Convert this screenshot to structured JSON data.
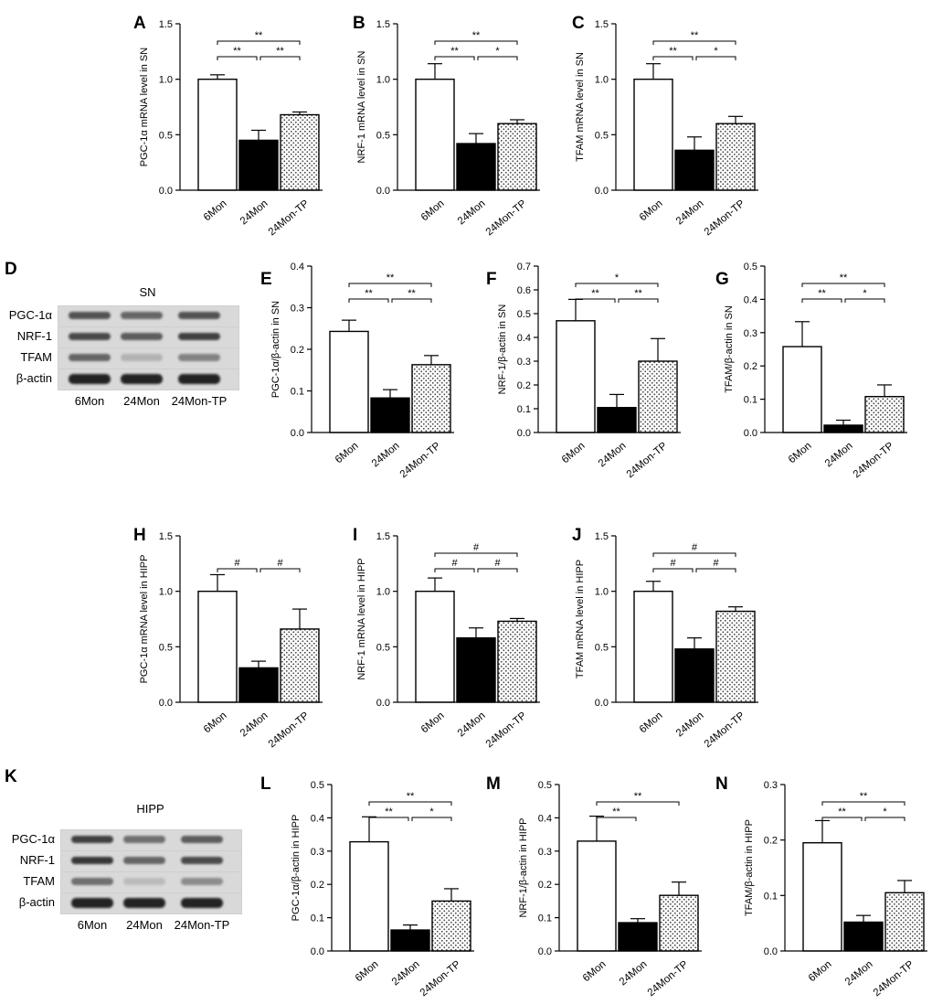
{
  "chart_data": [
    {
      "panel": "A",
      "type": "bar",
      "categories": [
        "6Mon",
        "24Mon",
        "24Mon-TP"
      ],
      "values": [
        1.0,
        0.45,
        0.68
      ],
      "errors": [
        0.04,
        0.09,
        0.025
      ],
      "ylabel": "PGC-1α mRNA level in SN",
      "ylim": [
        0,
        1.5
      ],
      "yticks": [
        "0.0",
        "0.5",
        "1.0",
        "1.5"
      ],
      "sig": [
        {
          "from": 0,
          "to": 2,
          "label": "**"
        },
        {
          "from": 0,
          "to": 1,
          "label": "**"
        },
        {
          "from": 1,
          "to": 2,
          "label": "**"
        }
      ]
    },
    {
      "panel": "B",
      "type": "bar",
      "categories": [
        "6Mon",
        "24Mon",
        "24Mon-TP"
      ],
      "values": [
        1.0,
        0.42,
        0.6
      ],
      "errors": [
        0.14,
        0.09,
        0.035
      ],
      "ylabel": "NRF-1 mRNA level in SN",
      "ylim": [
        0,
        1.5
      ],
      "yticks": [
        "0.0",
        "0.5",
        "1.0",
        "1.5"
      ],
      "sig": [
        {
          "from": 0,
          "to": 2,
          "label": "**"
        },
        {
          "from": 0,
          "to": 1,
          "label": "**"
        },
        {
          "from": 1,
          "to": 2,
          "label": "*"
        }
      ]
    },
    {
      "panel": "C",
      "type": "bar",
      "categories": [
        "6Mon",
        "24Mon",
        "24Mon-TP"
      ],
      "values": [
        1.0,
        0.36,
        0.6
      ],
      "errors": [
        0.14,
        0.12,
        0.065
      ],
      "ylabel": "TFAM mRNA level in SN",
      "ylim": [
        0,
        1.5
      ],
      "yticks": [
        "0.0",
        "0.5",
        "1.0",
        "1.5"
      ],
      "sig": [
        {
          "from": 0,
          "to": 2,
          "label": "**"
        },
        {
          "from": 0,
          "to": 1,
          "label": "**"
        },
        {
          "from": 1,
          "to": 2,
          "label": "*"
        }
      ]
    },
    {
      "panel": "E",
      "type": "bar",
      "categories": [
        "6Mon",
        "24Mon",
        "24Mon-TP"
      ],
      "values": [
        0.243,
        0.083,
        0.163
      ],
      "errors": [
        0.027,
        0.02,
        0.022
      ],
      "ylabel": "PGC-1α/β-actin in SN",
      "ylim": [
        0,
        0.4
      ],
      "yticks": [
        "0.0",
        "0.1",
        "0.2",
        "0.3",
        "0.4"
      ],
      "sig": [
        {
          "from": 0,
          "to": 2,
          "label": "**"
        },
        {
          "from": 0,
          "to": 1,
          "label": "**"
        },
        {
          "from": 1,
          "to": 2,
          "label": "**"
        }
      ]
    },
    {
      "panel": "F",
      "type": "bar",
      "categories": [
        "6Mon",
        "24Mon",
        "24Mon-TP"
      ],
      "values": [
        0.47,
        0.105,
        0.3
      ],
      "errors": [
        0.09,
        0.055,
        0.095
      ],
      "ylabel": "NRF-1/β-actin in SN",
      "ylim": [
        0,
        0.7
      ],
      "yticks": [
        "0.0",
        "0.1",
        "0.2",
        "0.3",
        "0.4",
        "0.5",
        "0.6",
        "0.7"
      ],
      "sig": [
        {
          "from": 0,
          "to": 2,
          "label": "*"
        },
        {
          "from": 0,
          "to": 1,
          "label": "**"
        },
        {
          "from": 1,
          "to": 2,
          "label": "**"
        }
      ]
    },
    {
      "panel": "G",
      "type": "bar",
      "categories": [
        "6Mon",
        "24Mon",
        "24Mon-TP"
      ],
      "values": [
        0.258,
        0.022,
        0.108
      ],
      "errors": [
        0.075,
        0.015,
        0.035
      ],
      "ylabel": "TFAM/β-actin in SN",
      "ylim": [
        0,
        0.5
      ],
      "yticks": [
        "0.0",
        "0.1",
        "0.2",
        "0.3",
        "0.4",
        "0.5"
      ],
      "sig": [
        {
          "from": 0,
          "to": 2,
          "label": "**"
        },
        {
          "from": 0,
          "to": 1,
          "label": "**"
        },
        {
          "from": 1,
          "to": 2,
          "label": "*"
        }
      ]
    },
    {
      "panel": "H",
      "type": "bar",
      "categories": [
        "6Mon",
        "24Mon",
        "24Mon-TP"
      ],
      "values": [
        1.0,
        0.31,
        0.66
      ],
      "errors": [
        0.15,
        0.06,
        0.18
      ],
      "ylabel": "PGC-1α mRNA level in HIPP",
      "ylim": [
        0,
        1.5
      ],
      "yticks": [
        "0.0",
        "0.5",
        "1.0",
        "1.5"
      ],
      "sig": [
        {
          "from": 0,
          "to": 1,
          "label": "#"
        },
        {
          "from": 1,
          "to": 2,
          "label": "#"
        }
      ]
    },
    {
      "panel": "I",
      "type": "bar",
      "categories": [
        "6Mon",
        "24Mon",
        "24Mon-TP"
      ],
      "values": [
        1.0,
        0.58,
        0.73
      ],
      "errors": [
        0.12,
        0.09,
        0.025
      ],
      "ylabel": "NRF-1 mRNA level in HIPP",
      "ylim": [
        0,
        1.5
      ],
      "yticks": [
        "0.0",
        "0.5",
        "1.0",
        "1.5"
      ],
      "sig": [
        {
          "from": 0,
          "to": 2,
          "label": "#"
        },
        {
          "from": 0,
          "to": 1,
          "label": "#"
        },
        {
          "from": 1,
          "to": 2,
          "label": "#"
        }
      ]
    },
    {
      "panel": "J",
      "type": "bar",
      "categories": [
        "6Mon",
        "24Mon",
        "24Mon-TP"
      ],
      "values": [
        1.0,
        0.48,
        0.82
      ],
      "errors": [
        0.09,
        0.1,
        0.04
      ],
      "ylabel": "TFAM mRNA level in HIPP",
      "ylim": [
        0,
        1.5
      ],
      "yticks": [
        "0.0",
        "0.5",
        "1.0",
        "1.5"
      ],
      "sig": [
        {
          "from": 0,
          "to": 2,
          "label": "#"
        },
        {
          "from": 0,
          "to": 1,
          "label": "#"
        },
        {
          "from": 1,
          "to": 2,
          "label": "#"
        }
      ]
    },
    {
      "panel": "L",
      "type": "bar",
      "categories": [
        "6Mon",
        "24Mon",
        "24Mon-TP"
      ],
      "values": [
        0.328,
        0.063,
        0.15
      ],
      "errors": [
        0.075,
        0.015,
        0.037
      ],
      "ylabel": "PGC-1α/β-actin in HIPP",
      "ylim": [
        0,
        0.5
      ],
      "yticks": [
        "0.0",
        "0.1",
        "0.2",
        "0.3",
        "0.4",
        "0.5"
      ],
      "sig": [
        {
          "from": 0,
          "to": 2,
          "label": "**"
        },
        {
          "from": 0,
          "to": 1,
          "label": "**"
        },
        {
          "from": 1,
          "to": 2,
          "label": "*"
        }
      ]
    },
    {
      "panel": "M",
      "type": "bar",
      "categories": [
        "6Mon",
        "24Mon",
        "24Mon-TP"
      ],
      "values": [
        0.33,
        0.085,
        0.167
      ],
      "errors": [
        0.075,
        0.012,
        0.04
      ],
      "ylabel": "NRF-1/β-actin in HIPP",
      "ylim": [
        0,
        0.5
      ],
      "yticks": [
        "0.0",
        "0.1",
        "0.2",
        "0.3",
        "0.4",
        "0.5"
      ],
      "sig": [
        {
          "from": 0,
          "to": 2,
          "label": "**"
        },
        {
          "from": 0,
          "to": 1,
          "label": "**"
        }
      ]
    },
    {
      "panel": "N",
      "type": "bar",
      "categories": [
        "6Mon",
        "24Mon",
        "24Mon-TP"
      ],
      "values": [
        0.195,
        0.052,
        0.105
      ],
      "errors": [
        0.04,
        0.012,
        0.022
      ],
      "ylabel": "TFAM/β-actin in HIPP",
      "ylim": [
        0,
        0.3
      ],
      "yticks": [
        "0.0",
        "0.1",
        "0.2",
        "0.3"
      ],
      "sig": [
        {
          "from": 0,
          "to": 2,
          "label": "**"
        },
        {
          "from": 0,
          "to": 1,
          "label": "**"
        },
        {
          "from": 1,
          "to": 2,
          "label": "*"
        }
      ]
    }
  ],
  "blots": [
    {
      "panel": "D",
      "title": "SN",
      "rows": [
        "PGC-1α",
        "NRF-1",
        "TFAM",
        "β-actin"
      ],
      "lanes": [
        "6Mon",
        "24Mon",
        "24Mon-TP"
      ],
      "intensity": [
        [
          0.7,
          0.6,
          0.7
        ],
        [
          0.75,
          0.65,
          0.8
        ],
        [
          0.6,
          0.2,
          0.45
        ],
        [
          0.95,
          0.95,
          0.95
        ]
      ]
    },
    {
      "panel": "K",
      "title": "HIPP",
      "rows": [
        "PGC-1α",
        "NRF-1",
        "TFAM",
        "β-actin"
      ],
      "lanes": [
        "6Mon",
        "24Mon",
        "24Mon-TP"
      ],
      "intensity": [
        [
          0.8,
          0.55,
          0.65
        ],
        [
          0.85,
          0.6,
          0.75
        ],
        [
          0.55,
          0.15,
          0.4
        ],
        [
          0.95,
          0.95,
          0.95
        ]
      ]
    }
  ],
  "colors": {
    "bar_fills": [
      "#ffffff",
      "#000000",
      "pattern"
    ],
    "axis": "#000000",
    "blot_bg": "#d9d9d9",
    "band": "#1a1a1a"
  }
}
